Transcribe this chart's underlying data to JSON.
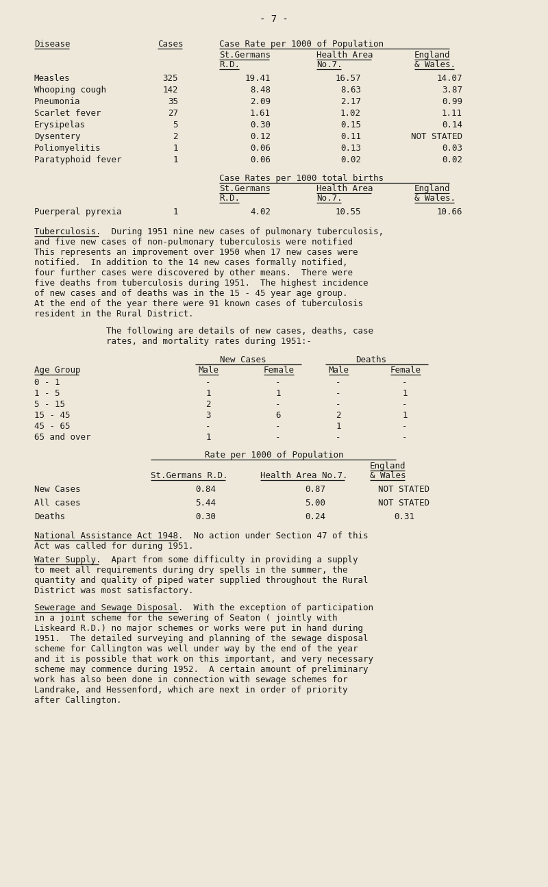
{
  "background_color": "#ede8da",
  "text_color": "#1a1a1a",
  "page_number": "- 7 -",
  "table1_rows": [
    [
      "Measles",
      "325",
      "19.41",
      "16.57",
      "14.07"
    ],
    [
      "Whooping cough",
      "142",
      "8.48",
      "8.63",
      "3.87"
    ],
    [
      "Pneumonia",
      "35",
      "2.09",
      "2.17",
      "0.99"
    ],
    [
      "Scarlet fever",
      "27",
      "1.61",
      "1.02",
      "1.11"
    ],
    [
      "Erysipelas",
      "5",
      "0.30",
      "0.15",
      "0.14"
    ],
    [
      "Dysentery",
      "2",
      "0.12",
      "0.11",
      "NOT STATED"
    ],
    [
      "Poliomyelitis",
      "1",
      "0.06",
      "0.13",
      "0.03"
    ],
    [
      "Paratyphoid fever",
      "1",
      "0.06",
      "0.02",
      "0.02"
    ]
  ],
  "table2_rows": [
    [
      "Puerperal pyrexia",
      "1",
      "4.02",
      "10.55",
      "10.66"
    ]
  ],
  "tb_lines": [
    "Tuberculosis.  During 1951 nine new cases of pulmonary tuberculosis,",
    "and five new cases of non-pulmonary tuberculosis were notified",
    "This represents an improvement over 1950 when 17 new cases were",
    "notified.  In addition to the 14 new cases formally notified,",
    "four further cases were discovered by other means.  There were",
    "five deaths from tuberculosis during 1951.  The highest incidence",
    "of new cases and of deaths was in the 15 - 45 year age group.",
    "At the end of the year there were 91 known cases of tuberculosis",
    "resident in the Rural District."
  ],
  "tb_underline_chars": 13,
  "follow_lines": [
    "The following are details of new cases, deaths, case",
    "rates, and mortality rates during 1951:-"
  ],
  "table3_rows": [
    [
      "0 - 1",
      "-",
      "-",
      "-",
      "-"
    ],
    [
      "1 - 5",
      "1",
      "1",
      "-",
      "1"
    ],
    [
      "5 - 15",
      "2",
      "-",
      "-",
      "-"
    ],
    [
      "15 - 45",
      "3",
      "6",
      "2",
      "1"
    ],
    [
      "45 - 65",
      "-",
      "-",
      "1",
      "-"
    ],
    [
      "65 and over",
      "1",
      "-",
      "-",
      "-"
    ]
  ],
  "table4_rows": [
    [
      "New Cases",
      "0.84",
      "0.87",
      "NOT STATED"
    ],
    [
      "All cases",
      "5.44",
      "5.00",
      "NOT STATED"
    ],
    [
      "Deaths",
      "0.30",
      "0.24",
      "0.31"
    ]
  ],
  "na_lines": [
    "National Assistance Act 1948.  No action under Section 47 of this",
    "Act was called for during 1951."
  ],
  "na_underline_chars": 29,
  "ws_lines": [
    "Water Supply.  Apart from some difficulty in providing a supply",
    "to meet all requirements during dry spells in the summer, the",
    "quantity and quality of piped water supplied throughout the Rural",
    "District was most satisfactory."
  ],
  "ws_underline_chars": 13,
  "sw_lines": [
    "Sewerage and Sewage Disposal.  With the exception of participation",
    "in a joint scheme for the sewering of Seaton ( jointly with",
    "Liskeard R.D.) no major schemes or works were put in hand during",
    "1951.  The detailed surveying and planning of the sewage disposal",
    "scheme for Callington was well under way by the end of the year",
    "and it is possible that work on this important, and very necessary",
    "scheme may commence during 1952.  A certain amount of preliminary",
    "work has also been done in connection with sewage schemes for",
    "Landrake, and Hessenford, which are next in order of priority",
    "after Callington."
  ],
  "sw_underline_chars": 29
}
